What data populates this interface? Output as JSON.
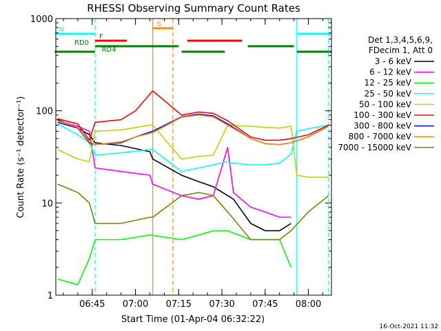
{
  "chart_data": {
    "type": "line",
    "title": "RHESSI Observing Summary Count Rates",
    "xlabel": "Start Time (01-Apr-04 06:32:22)",
    "ylabel": "Count Rate (s⁻¹ detector⁻¹)",
    "yscale": "log",
    "ylim": [
      1,
      1000
    ],
    "xlim": [
      "06:32:22",
      "08:08:00"
    ],
    "x_ticks": [
      "06:45",
      "07:00",
      "07:15",
      "07:30",
      "07:45",
      "08:00"
    ],
    "y_ticks": [
      "1",
      "10",
      "100",
      "1000"
    ],
    "grid": false,
    "legend_position": "right",
    "legend_header": [
      "Det 1,3,4,5,6,9,",
      "FDecim 1, Att 0"
    ],
    "series": [
      {
        "name": "3 - 6 keV",
        "color": "#000000",
        "points": [
          [
            "06:33",
            80
          ],
          [
            "06:40",
            65
          ],
          [
            "06:44",
            55
          ],
          [
            "06:46",
            45
          ],
          [
            "06:55",
            42
          ],
          [
            "07:05",
            36
          ],
          [
            "07:06",
            30
          ],
          [
            "07:16",
            20
          ],
          [
            "07:22",
            17
          ],
          [
            "07:27",
            15
          ],
          [
            "07:32",
            12
          ],
          [
            "07:34",
            11
          ],
          [
            "07:40",
            6
          ],
          [
            "07:45",
            5
          ],
          [
            "07:50",
            5
          ],
          [
            "07:54",
            6
          ]
        ]
      },
      {
        "name": "6 - 12 keV",
        "color": "#ff00ff",
        "points": [
          [
            "06:33",
            78
          ],
          [
            "06:40",
            68
          ],
          [
            "06:44",
            60
          ],
          [
            "06:46",
            24
          ],
          [
            "06:55",
            22
          ],
          [
            "07:05",
            20
          ],
          [
            "07:06",
            16
          ],
          [
            "07:16",
            12
          ],
          [
            "07:22",
            11
          ],
          [
            "07:27",
            12
          ],
          [
            "07:32",
            40
          ],
          [
            "07:34",
            13
          ],
          [
            "07:40",
            9
          ],
          [
            "07:45",
            8
          ],
          [
            "07:50",
            7
          ],
          [
            "07:54",
            7
          ]
        ]
      },
      {
        "name": "12 - 25 keV",
        "color": "#00ff00",
        "points": [
          [
            "06:33",
            1.5
          ],
          [
            "06:40",
            1.3
          ],
          [
            "06:44",
            2.5
          ],
          [
            "06:46",
            4
          ],
          [
            "06:55",
            4
          ],
          [
            "07:05",
            4.5
          ],
          [
            "07:16",
            4
          ],
          [
            "07:22",
            4.5
          ],
          [
            "07:27",
            5
          ],
          [
            "07:32",
            5
          ],
          [
            "07:40",
            4
          ],
          [
            "07:45",
            4
          ],
          [
            "07:50",
            4
          ],
          [
            "07:54",
            2
          ]
        ]
      },
      {
        "name": "25 - 50 keV",
        "color": "#00ffff",
        "points": [
          [
            "06:33",
            72
          ],
          [
            "06:40",
            55
          ],
          [
            "06:44",
            45
          ],
          [
            "06:46",
            33
          ],
          [
            "06:55",
            35
          ],
          [
            "07:05",
            38
          ],
          [
            "07:06",
            38
          ],
          [
            "07:16",
            22
          ],
          [
            "07:22",
            24
          ],
          [
            "07:27",
            26
          ],
          [
            "07:32",
            28
          ],
          [
            "07:34",
            27
          ],
          [
            "07:40",
            26
          ],
          [
            "07:45",
            26
          ],
          [
            "07:50",
            27
          ],
          [
            "07:54",
            34
          ],
          [
            "07:56",
            60
          ],
          [
            "08:00",
            64
          ],
          [
            "08:07",
            70
          ]
        ]
      },
      {
        "name": "50 - 100 keV",
        "color": "#cccc00",
        "points": [
          [
            "06:33",
            38
          ],
          [
            "06:40",
            30
          ],
          [
            "06:44",
            28
          ],
          [
            "06:46",
            60
          ],
          [
            "06:55",
            62
          ],
          [
            "07:05",
            70
          ],
          [
            "07:06",
            70
          ],
          [
            "07:16",
            30
          ],
          [
            "07:22",
            32
          ],
          [
            "07:27",
            33
          ],
          [
            "07:32",
            70
          ],
          [
            "07:40",
            68
          ],
          [
            "07:45",
            66
          ],
          [
            "07:50",
            65
          ],
          [
            "07:54",
            68
          ],
          [
            "07:56",
            20
          ],
          [
            "08:00",
            19
          ],
          [
            "08:07",
            19
          ]
        ]
      },
      {
        "name": "100 - 300 keV",
        "color": "#ff0000",
        "points": [
          [
            "06:33",
            82
          ],
          [
            "06:40",
            72
          ],
          [
            "06:44",
            48
          ],
          [
            "06:46",
            75
          ],
          [
            "06:55",
            80
          ],
          [
            "07:00",
            100
          ],
          [
            "07:06",
            165
          ],
          [
            "07:16",
            90
          ],
          [
            "07:22",
            97
          ],
          [
            "07:27",
            94
          ],
          [
            "07:32",
            78
          ],
          [
            "07:40",
            52
          ],
          [
            "07:45",
            48
          ],
          [
            "07:50",
            48
          ],
          [
            "07:54",
            50
          ],
          [
            "08:00",
            55
          ],
          [
            "08:07",
            70
          ]
        ]
      },
      {
        "name": "300 - 800 keV",
        "color": "#0000ff",
        "points": [
          [
            "06:33",
            75
          ],
          [
            "06:40",
            65
          ],
          [
            "06:44",
            45
          ],
          [
            "06:46",
            43
          ],
          [
            "06:55",
            45
          ],
          [
            "07:00",
            52
          ],
          [
            "07:06",
            60
          ],
          [
            "07:16",
            86
          ],
          [
            "07:22",
            92
          ],
          [
            "07:27",
            88
          ],
          [
            "07:32",
            72
          ],
          [
            "07:40",
            50
          ],
          [
            "07:45",
            44
          ],
          [
            "07:50",
            43
          ],
          [
            "07:54",
            45
          ],
          [
            "08:00",
            52
          ],
          [
            "08:07",
            68
          ]
        ]
      },
      {
        "name": "800 - 7000 keV",
        "color": "#ff8c00",
        "points": [
          [
            "06:33",
            78
          ],
          [
            "06:40",
            66
          ],
          [
            "06:44",
            46
          ],
          [
            "06:46",
            43
          ],
          [
            "06:55",
            46
          ],
          [
            "07:00",
            52
          ],
          [
            "07:06",
            58
          ],
          [
            "07:16",
            85
          ],
          [
            "07:22",
            90
          ],
          [
            "07:27",
            86
          ],
          [
            "07:32",
            70
          ],
          [
            "07:40",
            50
          ],
          [
            "07:45",
            44
          ],
          [
            "07:50",
            43
          ],
          [
            "07:54",
            45
          ],
          [
            "08:00",
            52
          ],
          [
            "08:07",
            68
          ]
        ]
      },
      {
        "name": "7000 - 15000 keV",
        "color": "#808000",
        "points": [
          [
            "06:33",
            16
          ],
          [
            "06:40",
            13
          ],
          [
            "06:44",
            10
          ],
          [
            "06:46",
            6
          ],
          [
            "06:55",
            6
          ],
          [
            "07:05",
            7
          ],
          [
            "07:06",
            7
          ],
          [
            "07:16",
            12
          ],
          [
            "07:22",
            13
          ],
          [
            "07:27",
            12
          ],
          [
            "07:32",
            8
          ],
          [
            "07:40",
            4
          ],
          [
            "07:45",
            4
          ],
          [
            "07:50",
            4
          ],
          [
            "07:54",
            5
          ],
          [
            "08:00",
            8
          ],
          [
            "08:07",
            12
          ]
        ]
      }
    ],
    "flags": [
      {
        "label": "N",
        "color": "#00ffff",
        "segments": [
          [
            "06:32",
            "06:46"
          ],
          [
            "07:56",
            "08:08"
          ]
        ]
      },
      {
        "label": "F",
        "color": "#ff0000",
        "segments": [
          [
            "06:46",
            "06:57"
          ],
          [
            "07:18",
            "07:37"
          ]
        ]
      },
      {
        "label": "S",
        "color": "#ff8c00",
        "segments": [
          [
            "07:06",
            "07:13"
          ]
        ]
      },
      {
        "label": "RD0",
        "color": "#008000",
        "segments": [
          [
            "06:46",
            "07:15"
          ],
          [
            "07:39",
            "07:55"
          ]
        ]
      },
      {
        "label": "RD4",
        "color": "#008000",
        "segments": [
          [
            "06:32",
            "06:46"
          ],
          [
            "07:16",
            "07:31"
          ],
          [
            "07:56",
            "08:08"
          ]
        ]
      }
    ],
    "vlines": [
      {
        "time": "06:46",
        "color": "#00ffff",
        "style": "dashed"
      },
      {
        "time": "07:06",
        "color": "#ff8c00",
        "style": "solid"
      },
      {
        "time": "07:13",
        "color": "#ff8c00",
        "style": "dashed"
      },
      {
        "time": "07:56",
        "color": "#00ffff",
        "style": "solid"
      },
      {
        "time": "08:07",
        "color": "#00ffff",
        "style": "dashed"
      }
    ]
  },
  "footer": {
    "timestamp": "16-Oct-2021 11:32"
  }
}
